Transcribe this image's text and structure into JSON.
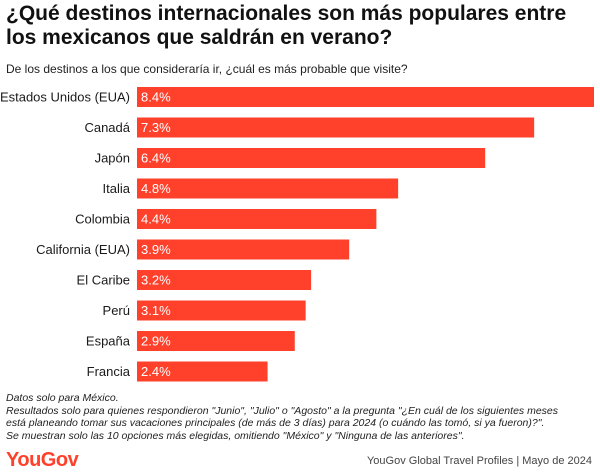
{
  "chart_data": {
    "type": "bar",
    "orientation": "horizontal",
    "title": "¿Qué destinos internacionales son más populares entre los mexicanos que saldrán en verano?",
    "subtitle": "De los destinos a los que consideraría ir, ¿cuál es más probable que visite?",
    "categories": [
      "Estados Unidos (EUA)",
      "Canadá",
      "Japón",
      "Italia",
      "Colombia",
      "California (EUA)",
      "El Caribe",
      "Perú",
      "España",
      "Francia"
    ],
    "values": [
      8.4,
      7.3,
      6.4,
      4.8,
      4.4,
      3.9,
      3.2,
      3.1,
      2.9,
      2.4
    ],
    "value_labels": [
      "8.4%",
      "7.3%",
      "6.4%",
      "4.8%",
      "4.4%",
      "3.9%",
      "3.2%",
      "3.1%",
      "2.9%",
      "2.4%"
    ],
    "xlim": [
      0,
      8.4
    ],
    "bar_color": "#ff412c",
    "label_color": "#ffffff"
  },
  "notes": [
    "Datos solo para México.",
    "Resultados solo para quienes respondieron \"Junio\", \"Julio\" o \"Agosto\" a la pregunta \"¿En cuál de los siguientes meses",
    "está planeando tomar sus vacaciones principales (de más de 3 días) para 2024 (o cuándo las tomó, si ya fueron)?\".",
    "Se muestran solo las 10 opciones más elegidas, omitiendo \"México\" y \"Ninguna de las anteriores\"."
  ],
  "footer": {
    "logo_text": "YouGov",
    "source": "YouGov Global Travel Profiles | Mayo de 2024"
  }
}
